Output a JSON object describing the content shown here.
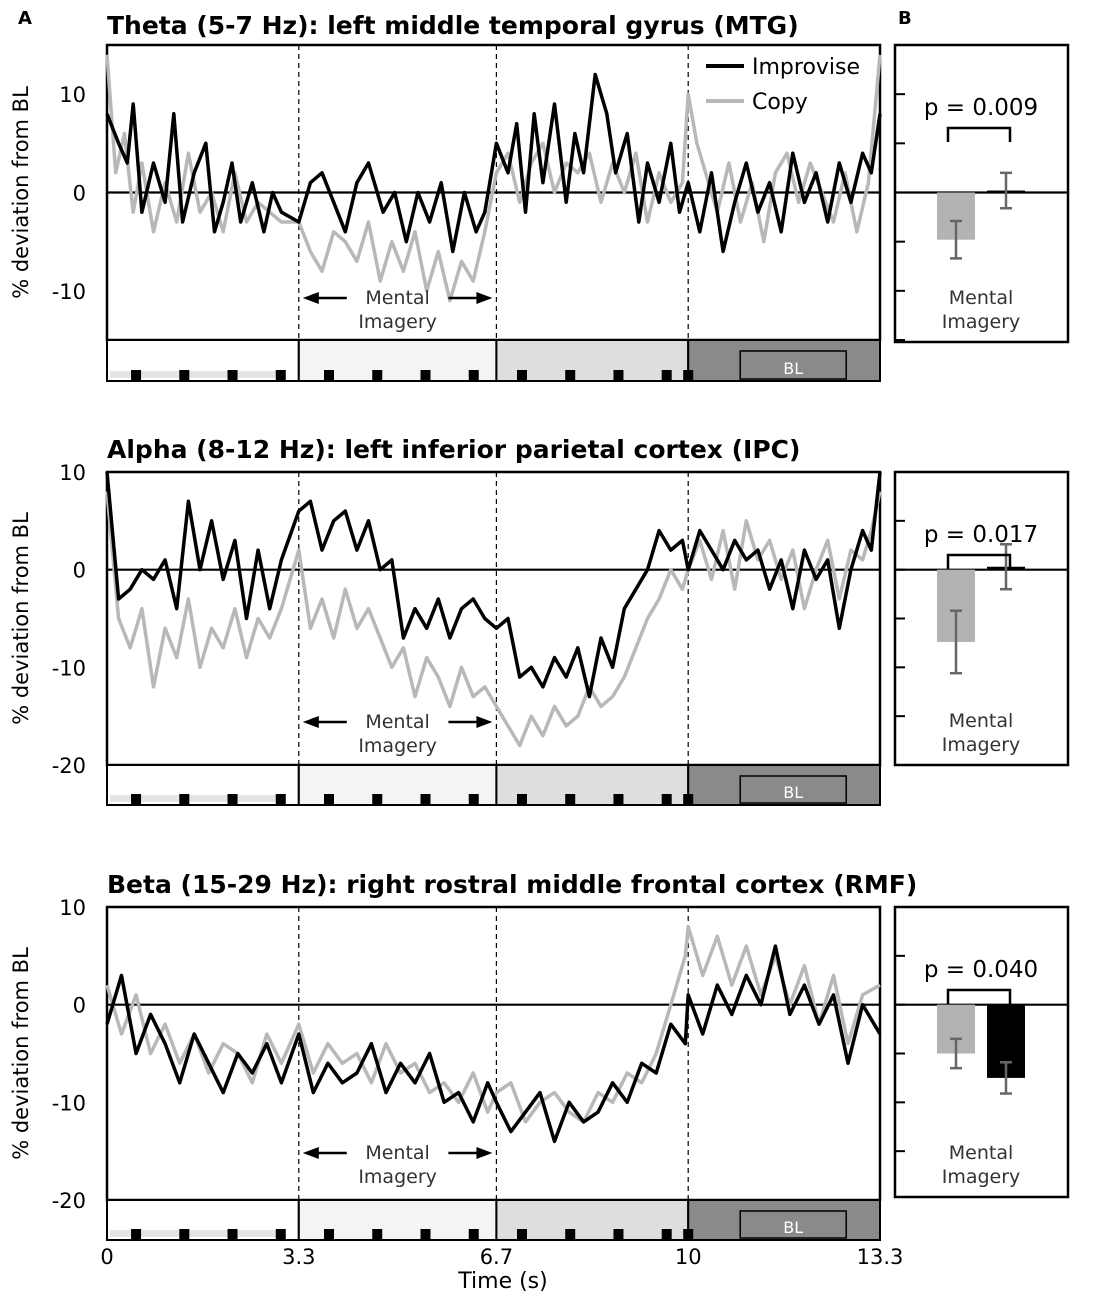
{
  "panel_letters": {
    "a": "A",
    "b": "B"
  },
  "legend": {
    "improvise": "Improvise",
    "copy": "Copy"
  },
  "annotations": {
    "imagery_line1": "Mental",
    "imagery_line2": "Imagery",
    "baseline_box": "BL"
  },
  "xaxis": {
    "label": "Time (s)",
    "tick_labels": [
      "0",
      "3.3",
      "6.7",
      "10",
      "13.3"
    ]
  },
  "yaxis": {
    "label": "% deviation from BL"
  },
  "colors": {
    "improvise": "#000000",
    "copy": "#b8b8b8",
    "copy_bar": "#b3b3b3",
    "improvise_bar": "#000000",
    "error_bar": "#666666",
    "epoch_1": "#ffffff",
    "epoch_2": "#f4f4f4",
    "epoch_3": "#dedede",
    "epoch_bl": "#8a8a8a"
  },
  "chart_data": [
    {
      "type": "line",
      "title": "Theta (5-7 Hz): left middle temporal gyrus (MTG)",
      "xlabel": "Time (s)",
      "ylabel": "% deviation from BL",
      "xlim": [
        0,
        13.3
      ],
      "ylim": [
        -15,
        15
      ],
      "ytick_labels": [
        "10",
        "0",
        "-10"
      ],
      "ytick_values": [
        10,
        0,
        -10
      ],
      "epoch_boundaries": [
        3.3,
        6.7,
        10
      ],
      "mental_imagery_window": [
        3.3,
        6.7
      ],
      "legend_position": "top-right",
      "grid": false,
      "series": [
        {
          "name": "Improvise",
          "x": [
            0,
            0.2,
            0.35,
            0.45,
            0.6,
            0.8,
            1.0,
            1.15,
            1.3,
            1.5,
            1.7,
            1.85,
            2.0,
            2.15,
            2.3,
            2.5,
            2.7,
            2.85,
            3.0,
            3.3,
            3.5,
            3.7,
            3.9,
            4.1,
            4.3,
            4.5,
            4.75,
            4.95,
            5.15,
            5.35,
            5.55,
            5.75,
            5.95,
            6.15,
            6.35,
            6.5,
            6.7,
            6.9,
            7.05,
            7.2,
            7.35,
            7.5,
            7.7,
            7.9,
            8.05,
            8.2,
            8.4,
            8.6,
            8.75,
            8.95,
            9.15,
            9.3,
            9.5,
            9.7,
            9.85,
            10.0,
            10.2,
            10.4,
            10.6,
            10.8,
            11.0,
            11.2,
            11.4,
            11.6,
            11.8,
            12.0,
            12.2,
            12.4,
            12.6,
            12.8,
            13.0,
            13.15,
            13.3
          ],
          "y": [
            8,
            5,
            3,
            9,
            -2,
            3,
            -1,
            8,
            -3,
            2,
            5,
            -4,
            -1,
            3,
            -3,
            1,
            -4,
            0,
            -2,
            -3,
            1,
            2,
            -1,
            -4,
            1,
            3,
            -2,
            0,
            -5,
            0,
            -3,
            1,
            -6,
            0,
            -4,
            -2,
            5,
            2,
            7,
            -2,
            8,
            1,
            9,
            -1,
            6,
            2,
            12,
            8,
            2,
            6,
            -3,
            3,
            -1,
            5,
            -2,
            1,
            -4,
            2,
            -6,
            -1,
            3,
            -2,
            1,
            -4,
            4,
            -1,
            2,
            -3,
            3,
            -1,
            4,
            2,
            8
          ]
        },
        {
          "name": "Copy",
          "x": [
            0,
            0.15,
            0.3,
            0.45,
            0.6,
            0.8,
            1.0,
            1.2,
            1.4,
            1.6,
            1.8,
            2.0,
            2.2,
            2.4,
            2.6,
            2.8,
            3.0,
            3.3,
            3.5,
            3.7,
            3.9,
            4.1,
            4.3,
            4.5,
            4.7,
            4.9,
            5.1,
            5.3,
            5.5,
            5.7,
            5.9,
            6.1,
            6.3,
            6.5,
            6.7,
            6.9,
            7.1,
            7.3,
            7.5,
            7.7,
            7.9,
            8.1,
            8.3,
            8.5,
            8.7,
            8.9,
            9.1,
            9.3,
            9.5,
            9.7,
            9.9,
            10.0,
            10.15,
            10.3,
            10.5,
            10.7,
            10.9,
            11.1,
            11.3,
            11.5,
            11.7,
            11.9,
            12.1,
            12.3,
            12.5,
            12.7,
            12.9,
            13.1,
            13.3
          ],
          "y": [
            14,
            2,
            6,
            -2,
            3,
            -4,
            1,
            -3,
            4,
            -2,
            0,
            -4,
            2,
            -3,
            -1,
            -2,
            -3,
            -3,
            -6,
            -8,
            -4,
            -5,
            -7,
            -3,
            -9,
            -5,
            -8,
            -4,
            -10,
            -6,
            -11,
            -7,
            -9,
            -4,
            2,
            4,
            -1,
            3,
            5,
            0,
            3,
            2,
            4,
            -1,
            3,
            0,
            4,
            -3,
            2,
            -1,
            1,
            10,
            5,
            2,
            -2,
            3,
            -3,
            1,
            -5,
            2,
            4,
            -1,
            3,
            0,
            -3,
            2,
            -4,
            1,
            14
          ]
        }
      ],
      "inset_bar": {
        "title": "Mental Imagery",
        "p_value_text": "p = 0.009",
        "ylim": [
          -15,
          15
        ],
        "bars": [
          {
            "name": "Copy",
            "value": -4.8,
            "error": 1.9
          },
          {
            "name": "Improvise",
            "value": 0.2,
            "error": 1.8
          }
        ]
      }
    },
    {
      "type": "line",
      "title": "Alpha (8-12 Hz): left inferior parietal cortex (IPC)",
      "xlabel": "Time (s)",
      "ylabel": "% deviation from BL",
      "xlim": [
        0,
        13.3
      ],
      "ylim": [
        -20,
        10
      ],
      "ytick_labels": [
        "10",
        "0",
        "-10",
        "-20"
      ],
      "ytick_values": [
        10,
        0,
        -10,
        -20
      ],
      "epoch_boundaries": [
        3.3,
        6.7,
        10
      ],
      "mental_imagery_window": [
        3.3,
        6.7
      ],
      "grid": false,
      "series": [
        {
          "name": "Improvise",
          "x": [
            0,
            0.2,
            0.4,
            0.6,
            0.8,
            1.0,
            1.2,
            1.4,
            1.6,
            1.8,
            2.0,
            2.2,
            2.4,
            2.6,
            2.8,
            3.0,
            3.3,
            3.5,
            3.7,
            3.9,
            4.1,
            4.3,
            4.5,
            4.7,
            4.9,
            5.1,
            5.3,
            5.5,
            5.7,
            5.9,
            6.1,
            6.3,
            6.5,
            6.7,
            6.9,
            7.1,
            7.3,
            7.5,
            7.7,
            7.9,
            8.1,
            8.3,
            8.5,
            8.7,
            8.9,
            9.1,
            9.3,
            9.5,
            9.7,
            9.9,
            10.0,
            10.2,
            10.4,
            10.6,
            10.8,
            11.0,
            11.2,
            11.4,
            11.6,
            11.8,
            12.0,
            12.2,
            12.4,
            12.6,
            12.8,
            13.0,
            13.15,
            13.3
          ],
          "y": [
            10,
            -3,
            -2,
            0,
            -1,
            1,
            -4,
            7,
            0,
            5,
            -1,
            3,
            -5,
            2,
            -4,
            1,
            6,
            7,
            2,
            5,
            6,
            2,
            5,
            0,
            1,
            -7,
            -4,
            -6,
            -3,
            -7,
            -4,
            -3,
            -5,
            -6,
            -5,
            -11,
            -10,
            -12,
            -9,
            -11,
            -8,
            -13,
            -7,
            -10,
            -4,
            -2,
            0,
            4,
            2,
            3,
            0,
            4,
            2,
            0,
            3,
            1,
            2,
            -2,
            1,
            -4,
            2,
            -1,
            1,
            -6,
            0,
            4,
            2,
            10
          ]
        },
        {
          "name": "Copy",
          "x": [
            0,
            0.2,
            0.4,
            0.6,
            0.8,
            1.0,
            1.2,
            1.4,
            1.6,
            1.8,
            2.0,
            2.2,
            2.4,
            2.6,
            2.8,
            3.0,
            3.3,
            3.5,
            3.7,
            3.9,
            4.1,
            4.3,
            4.5,
            4.7,
            4.9,
            5.1,
            5.3,
            5.5,
            5.7,
            5.9,
            6.1,
            6.3,
            6.5,
            6.7,
            6.9,
            7.1,
            7.3,
            7.5,
            7.7,
            7.9,
            8.1,
            8.3,
            8.5,
            8.7,
            8.9,
            9.1,
            9.3,
            9.5,
            9.7,
            9.9,
            10.0,
            10.2,
            10.4,
            10.6,
            10.8,
            11.0,
            11.2,
            11.4,
            11.6,
            11.8,
            12.0,
            12.2,
            12.4,
            12.6,
            12.8,
            13.0,
            13.15,
            13.3
          ],
          "y": [
            8,
            -5,
            -8,
            -4,
            -12,
            -6,
            -9,
            -3,
            -10,
            -6,
            -8,
            -4,
            -9,
            -5,
            -7,
            -4,
            2,
            -6,
            -3,
            -7,
            -2,
            -6,
            -4,
            -7,
            -10,
            -8,
            -13,
            -9,
            -11,
            -14,
            -10,
            -13,
            -12,
            -14,
            -16,
            -18,
            -15,
            -17,
            -14,
            -16,
            -15,
            -12,
            -14,
            -13,
            -11,
            -8,
            -5,
            -3,
            0,
            -2,
            0,
            3,
            -1,
            4,
            -2,
            5,
            1,
            3,
            -1,
            2,
            -4,
            0,
            3,
            -3,
            2,
            1,
            4,
            8
          ]
        }
      ],
      "inset_bar": {
        "title": "Mental Imagery",
        "p_value_text": "p = 0.017",
        "ylim": [
          -20,
          10
        ],
        "bars": [
          {
            "name": "Copy",
            "value": -7.4,
            "error": 3.2
          },
          {
            "name": "Improvise",
            "value": 0.3,
            "error": 2.3
          }
        ]
      }
    },
    {
      "type": "line",
      "title": "Beta (15-29 Hz): right rostral middle frontal cortex (RMF)",
      "xlabel": "Time (s)",
      "ylabel": "% deviation from BL",
      "xlim": [
        0,
        13.3
      ],
      "ylim": [
        -20,
        10
      ],
      "ytick_labels": [
        "10",
        "0",
        "-10",
        "-20"
      ],
      "ytick_values": [
        10,
        0,
        -10,
        -20
      ],
      "xtick_labels": [
        "0",
        "3.3",
        "6.7",
        "10",
        "13.3"
      ],
      "xtick_values": [
        0,
        3.3,
        6.7,
        10,
        13.3
      ],
      "epoch_boundaries": [
        3.3,
        6.7,
        10
      ],
      "mental_imagery_window": [
        3.3,
        6.7
      ],
      "grid": false,
      "series": [
        {
          "name": "Improvise",
          "x": [
            0,
            0.25,
            0.5,
            0.75,
            1.0,
            1.25,
            1.5,
            1.75,
            2.0,
            2.25,
            2.5,
            2.75,
            3.0,
            3.3,
            3.55,
            3.8,
            4.05,
            4.3,
            4.55,
            4.8,
            5.05,
            5.3,
            5.55,
            5.8,
            6.05,
            6.3,
            6.55,
            6.7,
            6.95,
            7.2,
            7.45,
            7.7,
            7.95,
            8.2,
            8.45,
            8.7,
            8.95,
            9.2,
            9.45,
            9.7,
            9.95,
            10.0,
            10.25,
            10.5,
            10.75,
            11.0,
            11.25,
            11.5,
            11.75,
            12.0,
            12.25,
            12.5,
            12.75,
            13.0,
            13.3
          ],
          "y": [
            -2,
            3,
            -5,
            -1,
            -4,
            -8,
            -3,
            -6,
            -9,
            -5,
            -7,
            -4,
            -8,
            -3,
            -9,
            -6,
            -8,
            -7,
            -4,
            -9,
            -6,
            -8,
            -5,
            -10,
            -9,
            -12,
            -8,
            -10,
            -13,
            -11,
            -9,
            -14,
            -10,
            -12,
            -11,
            -8,
            -10,
            -6,
            -7,
            -2,
            -4,
            1,
            -3,
            2,
            -1,
            3,
            0,
            6,
            -1,
            2,
            -2,
            1,
            -6,
            0,
            -3
          ]
        },
        {
          "name": "Copy",
          "x": [
            0,
            0.25,
            0.5,
            0.75,
            1.0,
            1.25,
            1.5,
            1.75,
            2.0,
            2.25,
            2.5,
            2.75,
            3.0,
            3.3,
            3.55,
            3.8,
            4.05,
            4.3,
            4.55,
            4.8,
            5.05,
            5.3,
            5.55,
            5.8,
            6.05,
            6.3,
            6.55,
            6.7,
            6.95,
            7.2,
            7.45,
            7.7,
            7.95,
            8.2,
            8.45,
            8.7,
            8.95,
            9.2,
            9.45,
            9.7,
            9.95,
            10.0,
            10.25,
            10.5,
            10.75,
            11.0,
            11.25,
            11.5,
            11.75,
            12.0,
            12.25,
            12.5,
            12.75,
            13.0,
            13.3
          ],
          "y": [
            2,
            -3,
            1,
            -5,
            -2,
            -6,
            -3,
            -7,
            -4,
            -5,
            -8,
            -3,
            -6,
            -2,
            -7,
            -4,
            -6,
            -5,
            -8,
            -4,
            -7,
            -6,
            -9,
            -8,
            -10,
            -7,
            -11,
            -9,
            -8,
            -12,
            -10,
            -9,
            -11,
            -12,
            -9,
            -10,
            -7,
            -8,
            -5,
            0,
            5,
            8,
            3,
            7,
            2,
            6,
            1,
            5,
            0,
            4,
            -2,
            3,
            -4,
            1,
            2
          ]
        }
      ],
      "inset_bar": {
        "title": "Mental Imagery",
        "p_value_text": "p = 0.040",
        "ylim": [
          -20,
          10
        ],
        "bars": [
          {
            "name": "Copy",
            "value": -5.0,
            "error": 1.5
          },
          {
            "name": "Improvise",
            "value": -7.5,
            "error": 1.6
          }
        ]
      }
    }
  ]
}
